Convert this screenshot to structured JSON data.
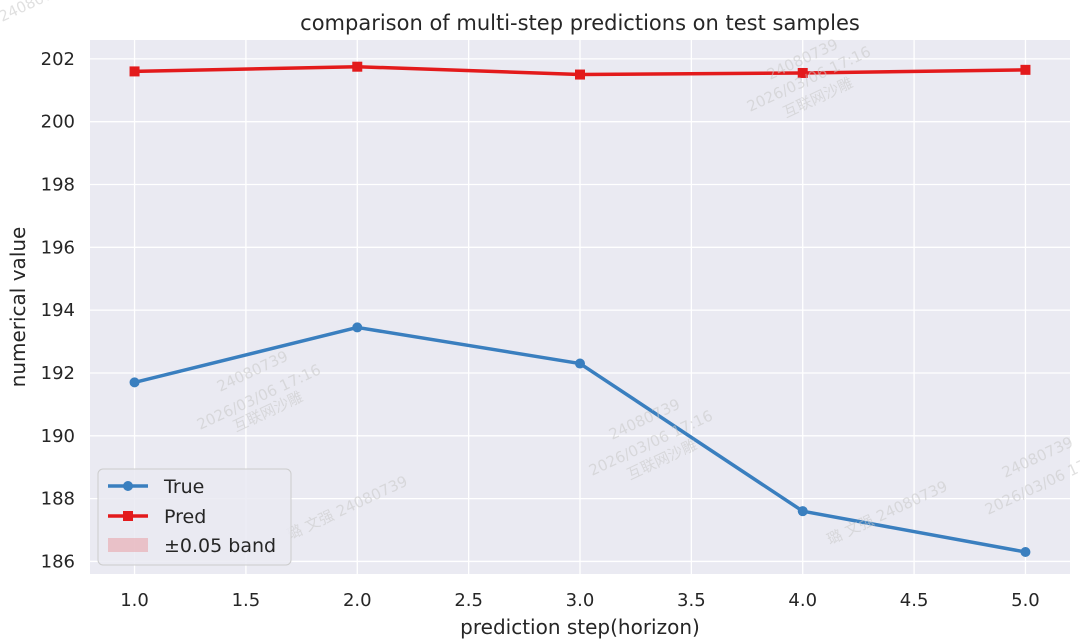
{
  "chart_data": {
    "type": "line",
    "title": "comparison of multi-step predictions on test samples",
    "xlabel": "prediction step(horizon)",
    "ylabel": "numerical value",
    "xlim": [
      0.8,
      5.2
    ],
    "ylim": [
      185.6,
      202.6
    ],
    "xticks": [
      1.0,
      1.5,
      2.0,
      2.5,
      3.0,
      3.5,
      4.0,
      4.5,
      5.0
    ],
    "xtick_labels": [
      "1.0",
      "1.5",
      "2.0",
      "2.5",
      "3.0",
      "3.5",
      "4.0",
      "4.5",
      "5.0"
    ],
    "yticks": [
      186,
      188,
      190,
      192,
      194,
      196,
      198,
      200,
      202
    ],
    "ytick_labels": [
      "186",
      "188",
      "190",
      "192",
      "194",
      "196",
      "198",
      "200",
      "202"
    ],
    "grid": true,
    "legend_position": "lower-left",
    "x": [
      1.0,
      2.0,
      3.0,
      4.0,
      5.0
    ],
    "series": [
      {
        "name": "True",
        "values": [
          191.7,
          193.45,
          192.3,
          187.6,
          186.3
        ],
        "color": "#3a7fbf",
        "marker": "circle"
      },
      {
        "name": "Pred",
        "values": [
          201.6,
          201.75,
          201.5,
          201.55,
          201.65
        ],
        "color": "#e31a1c",
        "marker": "square"
      }
    ],
    "band": {
      "label": "±0.05 band",
      "color": "#e8a5ab"
    }
  },
  "watermarks": [
    "24080739",
    "2026/03/06 17:16",
    "互联网沙雕",
    "璐 文强 24080739"
  ]
}
